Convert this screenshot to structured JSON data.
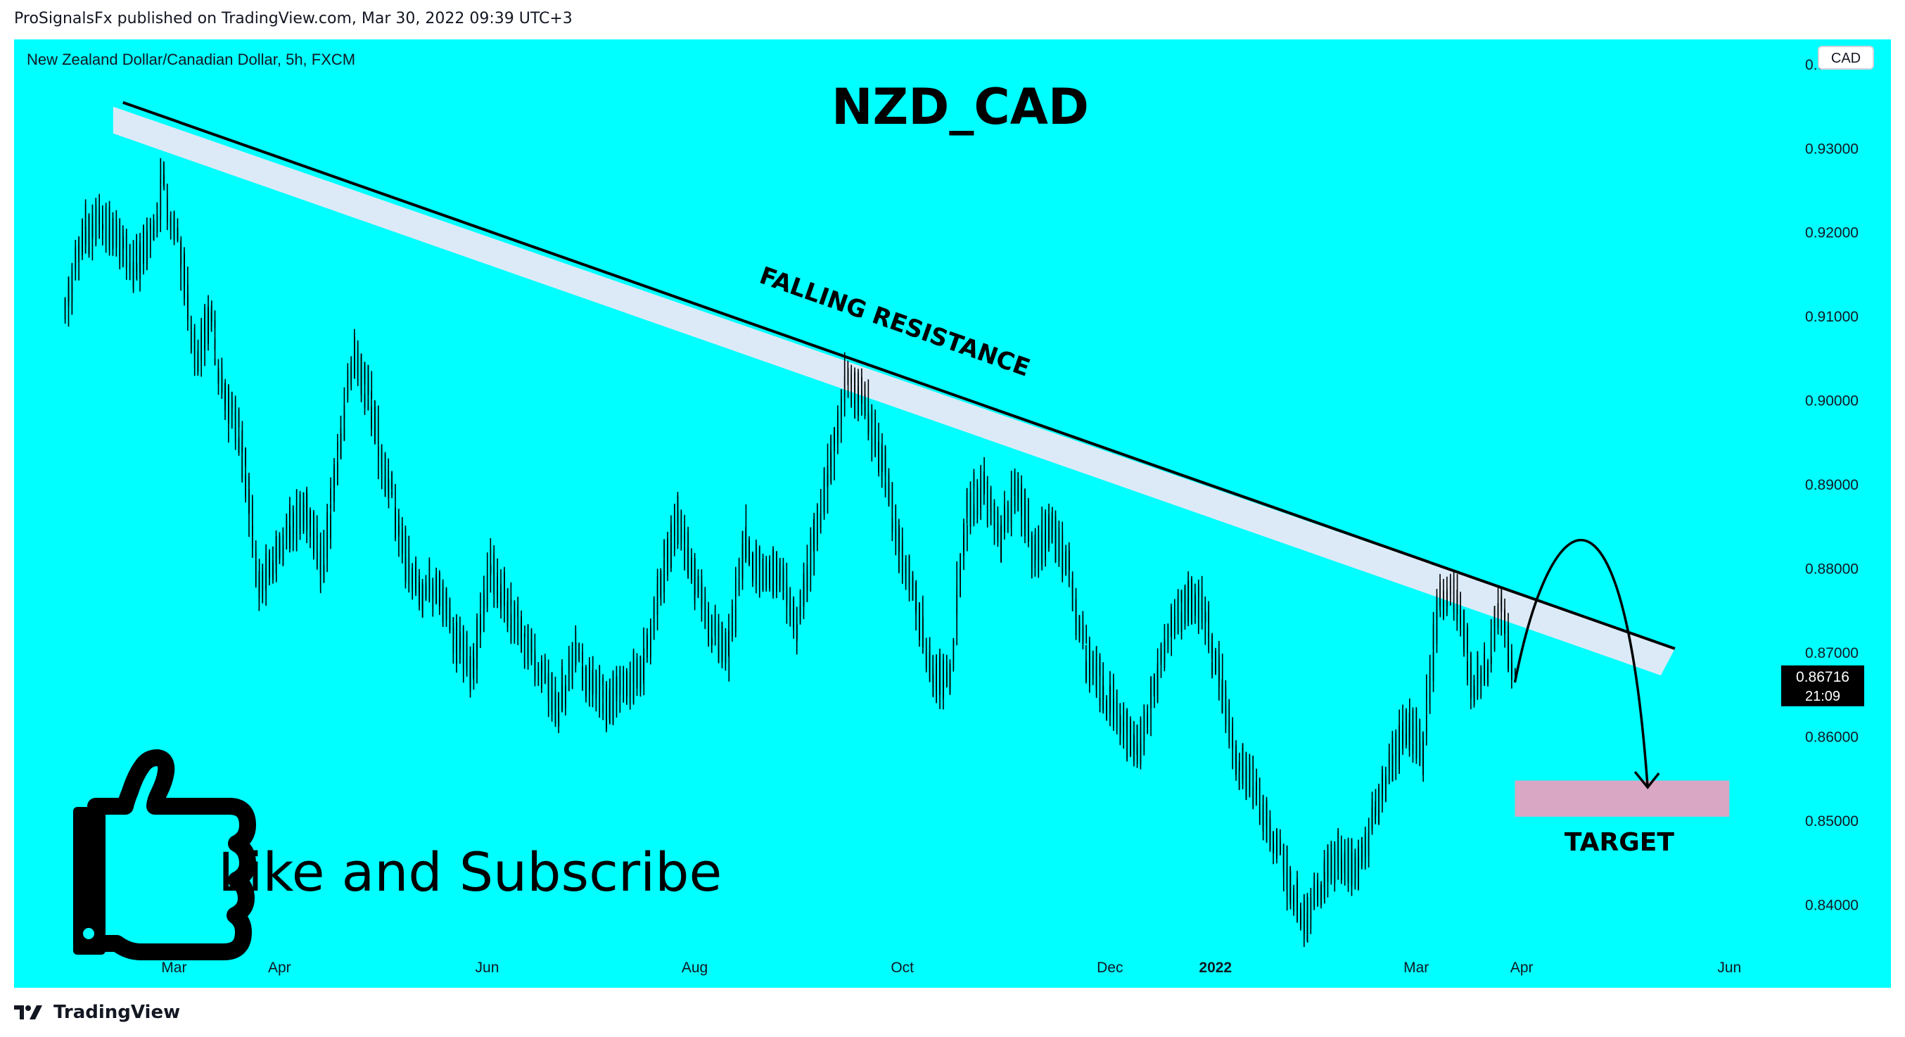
{
  "header": {
    "published": "ProSignalsFx published on TradingView.com, Mar 30, 2022 09:39 UTC+3"
  },
  "footer": {
    "logo_text": "TradingView"
  },
  "colors": {
    "background": "#00FFFF",
    "resistance_band": "#DCEAF7",
    "target_box": "#D9A7C3",
    "price_tag_bg": "#000000",
    "price_tag_text": "#FFFFFF",
    "candles": "#000000"
  },
  "chart_data": {
    "type": "line",
    "instrument": "New Zealand Dollar/Canadian Dollar, 5h, FXCM",
    "title": "NZD_CAD",
    "currency": "CAD",
    "ylim": [
      0.835,
      0.943
    ],
    "y_ticks": [
      "0.94000",
      "0.93000",
      "0.92000",
      "0.91000",
      "0.90000",
      "0.89000",
      "0.88000",
      "0.87000",
      "0.86000",
      "0.85000",
      "0.84000"
    ],
    "x_ticks": [
      "Mar",
      "Apr",
      "Jun",
      "Aug",
      "Oct",
      "Dec",
      "2022",
      "Mar",
      "Apr",
      "Jun"
    ],
    "last_price": "0.86716",
    "countdown": "21:09",
    "series": [
      {
        "dates": [
          "2021-01-28",
          "2021-02-03",
          "2021-02-08",
          "2021-02-14",
          "2021-02-18",
          "2021-02-23",
          "2021-02-26",
          "2021-03-03",
          "2021-03-08",
          "2021-03-12",
          "2021-03-16",
          "2021-03-21",
          "2021-03-26",
          "2021-03-31",
          "2021-04-04",
          "2021-04-09",
          "2021-04-14",
          "2021-04-19",
          "2021-04-23",
          "2021-04-28",
          "2021-05-03",
          "2021-05-08",
          "2021-05-13",
          "2021-05-18",
          "2021-05-23",
          "2021-05-28",
          "2021-06-02",
          "2021-06-07",
          "2021-06-12",
          "2021-06-17",
          "2021-06-22",
          "2021-06-27",
          "2021-07-02",
          "2021-07-07",
          "2021-07-12",
          "2021-07-17",
          "2021-07-22",
          "2021-07-27",
          "2021-08-01",
          "2021-08-06",
          "2021-08-11",
          "2021-08-16",
          "2021-08-21",
          "2021-08-26",
          "2021-08-31",
          "2021-09-05",
          "2021-09-10",
          "2021-09-15",
          "2021-09-20",
          "2021-09-25",
          "2021-09-30",
          "2021-10-05",
          "2021-10-10",
          "2021-10-15",
          "2021-10-20",
          "2021-10-25",
          "2021-10-30",
          "2021-11-04",
          "2021-11-09",
          "2021-11-14",
          "2021-11-19",
          "2021-11-24",
          "2021-11-29",
          "2021-12-04",
          "2021-12-09",
          "2021-12-14",
          "2021-12-19",
          "2021-12-24",
          "2021-12-29",
          "2022-01-03",
          "2022-01-08",
          "2022-01-13",
          "2022-01-18",
          "2022-01-23",
          "2022-01-28",
          "2022-02-02",
          "2022-02-07",
          "2022-02-12",
          "2022-02-17",
          "2022-02-22",
          "2022-02-27",
          "2022-03-03",
          "2022-03-08",
          "2022-03-13",
          "2022-03-18",
          "2022-03-23",
          "2022-03-26",
          "2022-03-30"
        ],
        "close": [
          0.911,
          0.92,
          0.922,
          0.918,
          0.916,
          0.92,
          0.926,
          0.918,
          0.905,
          0.91,
          0.9,
          0.896,
          0.878,
          0.881,
          0.885,
          0.887,
          0.88,
          0.895,
          0.906,
          0.9,
          0.89,
          0.882,
          0.877,
          0.878,
          0.872,
          0.868,
          0.88,
          0.876,
          0.872,
          0.868,
          0.864,
          0.87,
          0.866,
          0.864,
          0.866,
          0.868,
          0.878,
          0.886,
          0.879,
          0.873,
          0.87,
          0.884,
          0.879,
          0.88,
          0.873,
          0.883,
          0.892,
          0.903,
          0.9,
          0.893,
          0.884,
          0.876,
          0.868,
          0.866,
          0.886,
          0.89,
          0.884,
          0.89,
          0.882,
          0.885,
          0.88,
          0.87,
          0.866,
          0.863,
          0.858,
          0.865,
          0.873,
          0.877,
          0.875,
          0.866,
          0.857,
          0.854,
          0.848,
          0.843,
          0.838,
          0.843,
          0.846,
          0.844,
          0.851,
          0.857,
          0.862,
          0.858,
          0.876,
          0.877,
          0.866,
          0.87,
          0.876,
          0.867
        ]
      }
    ],
    "annotations": {
      "trendline_label": "FALLING RESISTANCE",
      "target_label": "TARGET",
      "target_zone": [
        0.8505,
        0.8548
      ],
      "trendline": {
        "start": [
          "2021-02-14",
          0.9355
        ],
        "end": [
          "2022-05-16",
          0.8705
        ]
      },
      "overlay_text": "Like and Subscribe"
    }
  }
}
